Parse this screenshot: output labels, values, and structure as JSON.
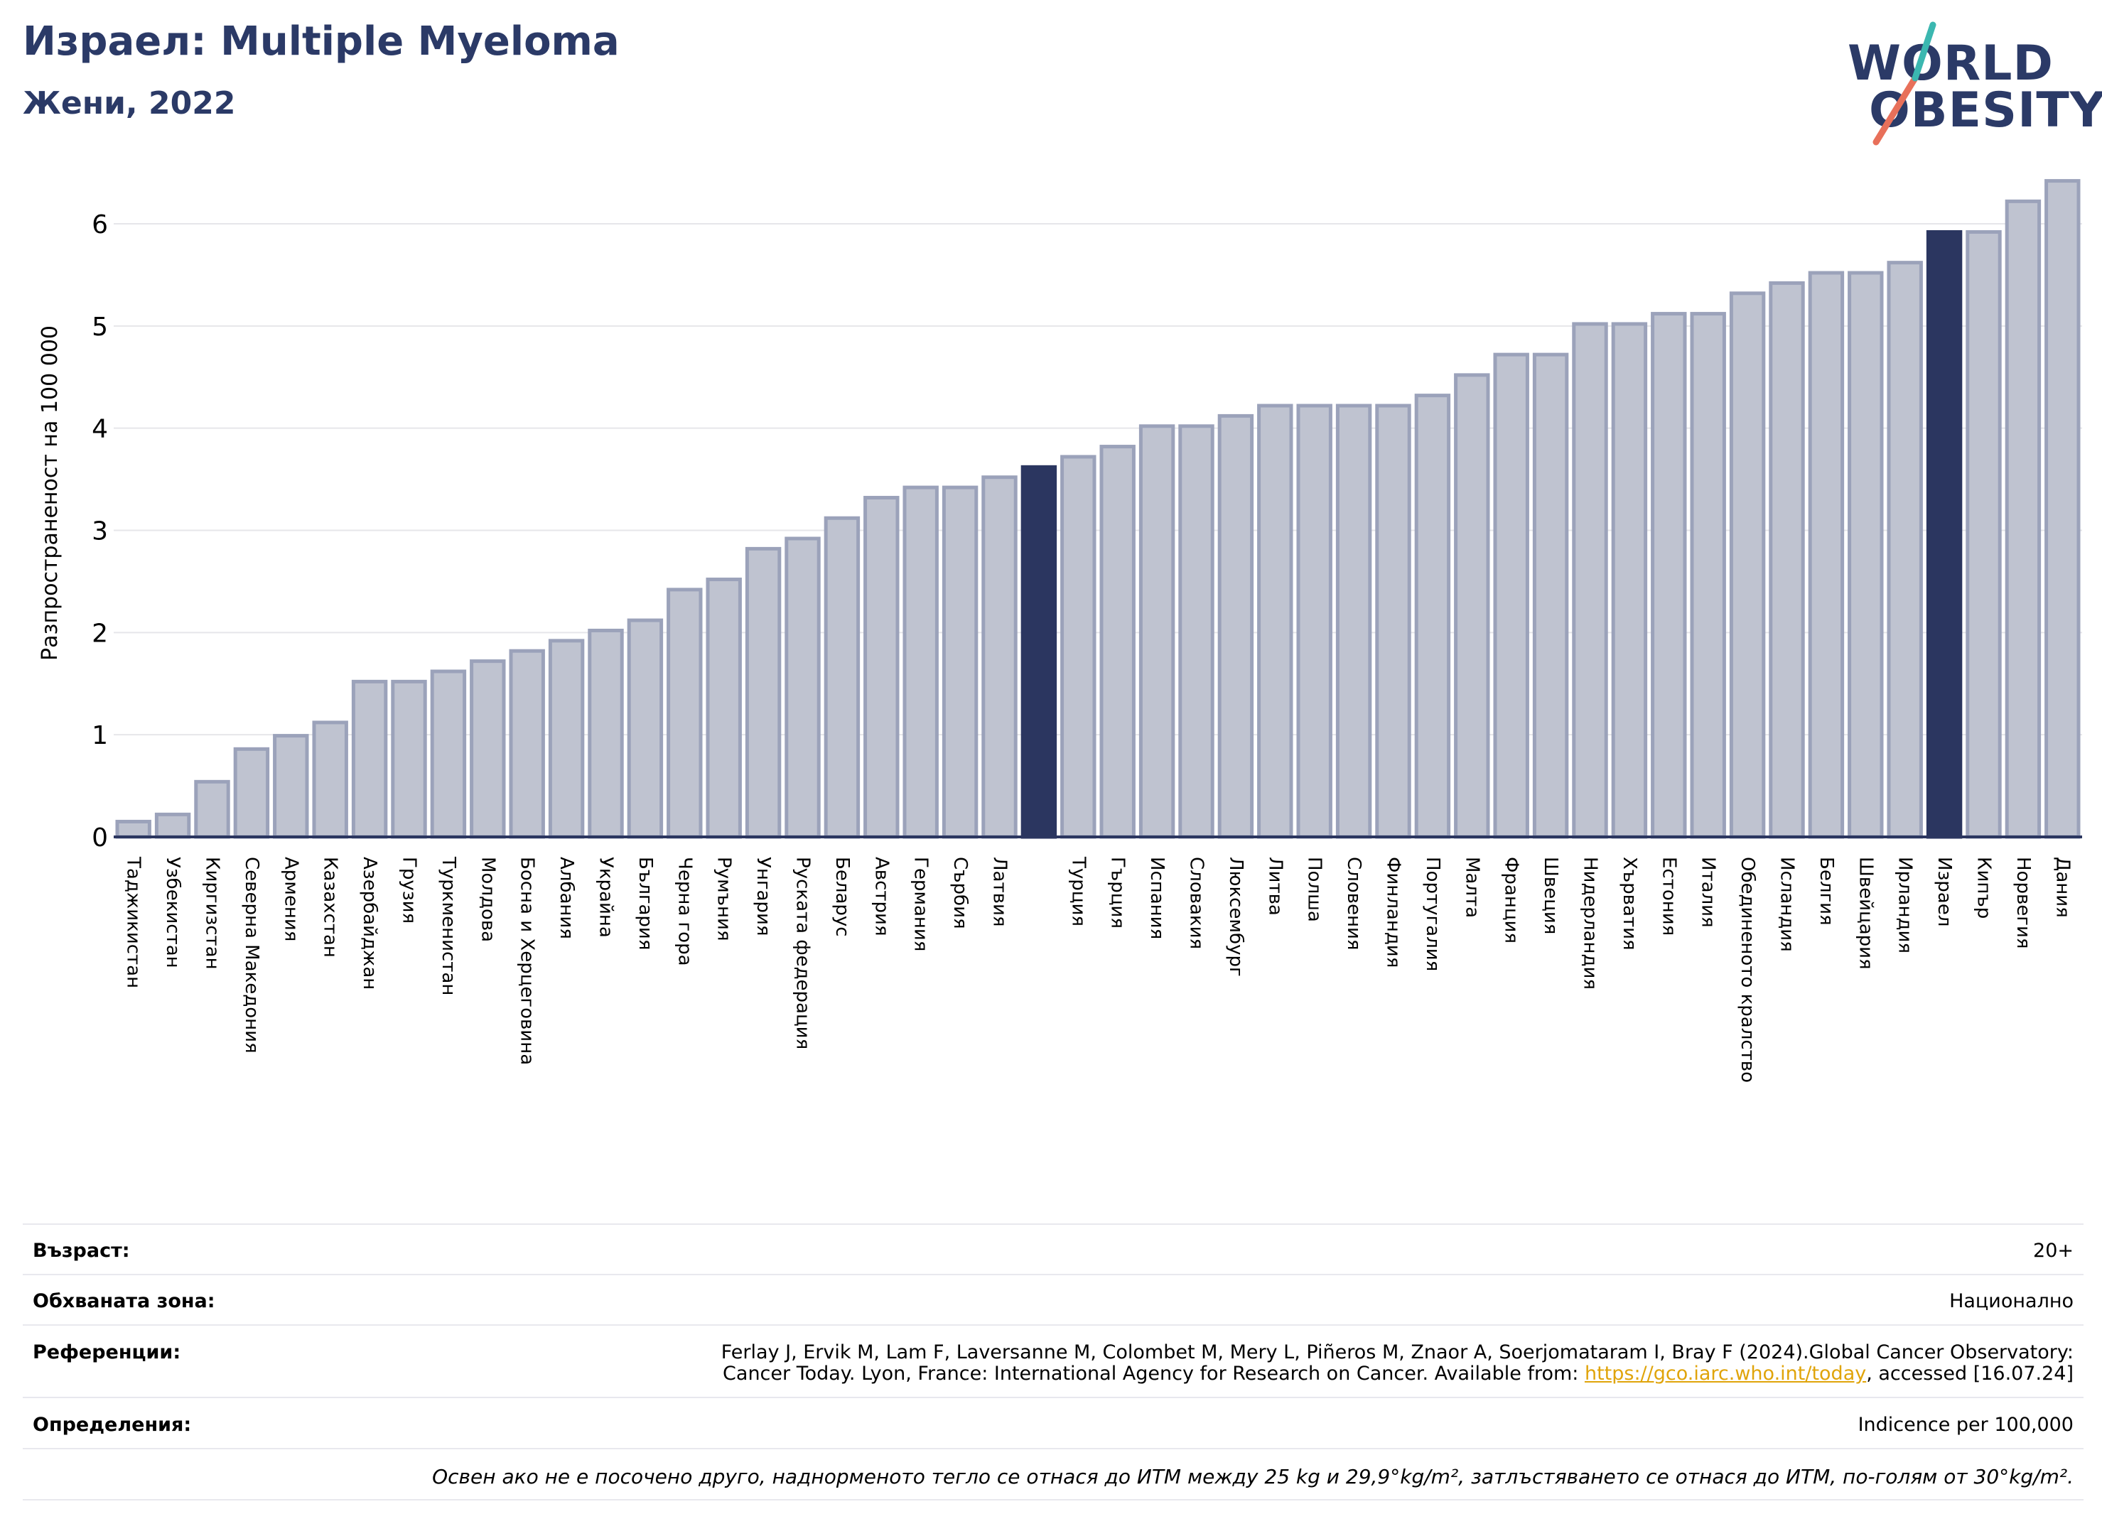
{
  "header": {
    "title": "Израел: Multiple Myeloma",
    "subtitle": "Жени, 2022"
  },
  "logo": {
    "line1": "WORLD",
    "line2": "OBESITY"
  },
  "colors": {
    "bar": "#bfc3d0",
    "bar_border": "#9ba2ba",
    "highlight": "#2b3660",
    "title": "#2b3a67",
    "grid": "#e6e6ea"
  },
  "chart_data": {
    "type": "bar",
    "ylabel": "Разпространеност  на 100 000",
    "ylim": [
      0,
      6.6
    ],
    "yticks": [
      0,
      1,
      2,
      3,
      4,
      5,
      6
    ],
    "grid": true,
    "categories": [
      "Таджикистан",
      "Узбекистан",
      "Киргизстан",
      "Северна Македония",
      "Армения",
      "Казахстан",
      "Азербайджан",
      "Грузия",
      "Туркменистан",
      "Молдова",
      "Босна и Херцеговина",
      "Албания",
      "Украйна",
      "България",
      "Черна гора",
      "Румъния",
      "Унгария",
      "Руската федерация",
      "Беларус",
      "Австрия",
      "Германия",
      "Сърбия",
      "Латвия",
      "",
      "Турция",
      "Гърция",
      "Испания",
      "Словакия",
      "Люксембург",
      "Литва",
      "Полша",
      "Словения",
      "Финландия",
      "Португалия",
      "Малта",
      "Франция",
      "Швеция",
      "Нидерландия",
      "Хърватия",
      "Естония",
      "Италия",
      "Обединеното кралство",
      "Исландия",
      "Белгия",
      "Швейцария",
      "Ирландия",
      "Израел",
      "Кипър",
      "Норвегия",
      "Дания"
    ],
    "values": [
      0.15,
      0.22,
      0.54,
      0.86,
      0.99,
      1.12,
      1.52,
      1.52,
      1.62,
      1.72,
      1.82,
      1.92,
      2.02,
      2.12,
      2.42,
      2.52,
      2.82,
      2.92,
      3.12,
      3.32,
      3.42,
      3.42,
      3.52,
      3.62,
      3.72,
      3.82,
      4.02,
      4.02,
      4.12,
      4.22,
      4.22,
      4.22,
      4.22,
      4.32,
      4.52,
      4.72,
      4.72,
      5.02,
      5.02,
      5.12,
      5.12,
      5.32,
      5.42,
      5.52,
      5.52,
      5.62,
      5.92,
      5.92,
      6.22,
      6.42
    ],
    "highlight_indices": [
      23,
      46
    ]
  },
  "info": {
    "age_label": "Възраст:",
    "age_value": "20+",
    "area_label": "Обхваната зона:",
    "area_value": "Национално",
    "refs_label": "Референции:",
    "refs_line1": "Ferlay J, Ervik M, Lam F, Laversanne M, Colombet M, Mery L, Piñeros M, Znaor A, Soerjomataram I, Bray F (2024).Global Cancer Observatory:",
    "refs_line2_pre": "Cancer Today. Lyon, France: International Agency for Research on Cancer. Available from: ",
    "refs_link": "https://gco.iarc.who.int/today",
    "refs_line2_post": ", accessed [16.07.24]",
    "def_label": "Определения:",
    "def_value": "Indicence per 100,000",
    "note": "Освен ако не е посочено друго, наднормeното тегло се отнася до ИТМ между 25 kg и 29,9°kg/m², затлъстяването се отнася до ИТМ, по-голям от 30°kg/m²."
  }
}
